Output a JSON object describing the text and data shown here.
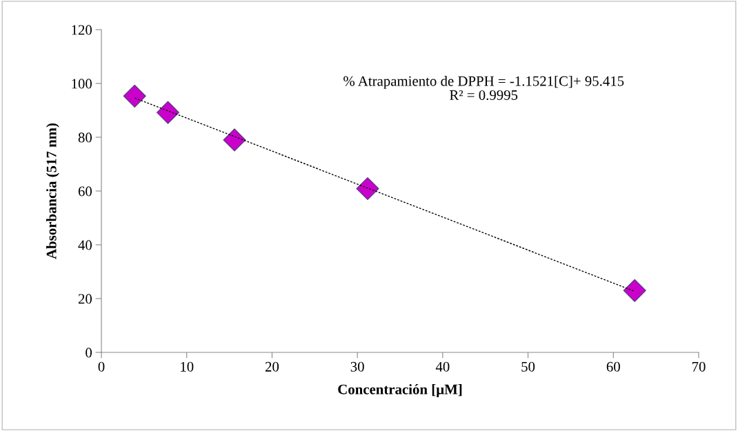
{
  "chart_data": {
    "type": "scatter",
    "xlabel": "Concentración [µM]",
    "ylabel": "Absorbancia (517 nm)",
    "xlim": [
      0,
      70
    ],
    "xticks": [
      0,
      10,
      20,
      30,
      40,
      50,
      60,
      70
    ],
    "ylim": [
      0,
      120
    ],
    "yticks": [
      0,
      20,
      40,
      60,
      80,
      100,
      120
    ],
    "grid": false,
    "legend": false,
    "annotations": [
      "% Atrapamiento de DPPH = -1.1521[C]+ 95.415\nR² = 0.9995"
    ],
    "series": [
      {
        "color": "#cc00cc",
        "marker": "diamond",
        "x": [
          3.9,
          7.8,
          15.6,
          31.2,
          62.5
        ],
        "values": [
          95.3,
          89.2,
          79.0,
          60.9,
          23.0
        ]
      },
      {
        "type": "line",
        "color": "#000000",
        "line_style": "dotted",
        "marker": "none",
        "x": [
          3.9,
          62.5
        ],
        "values": [
          94.6,
          22.7
        ]
      }
    ]
  }
}
